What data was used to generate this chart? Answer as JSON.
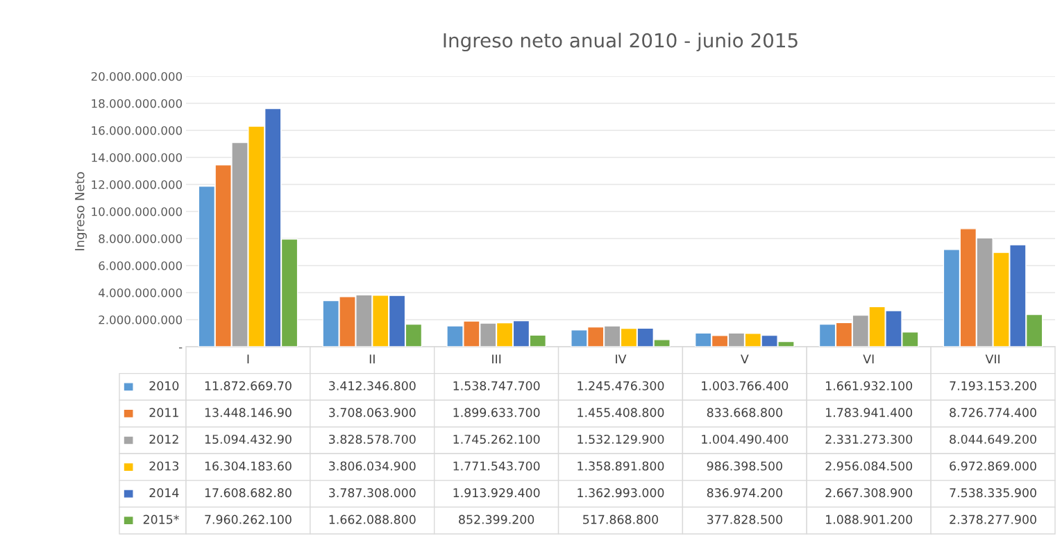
{
  "chart_data": {
    "type": "bar",
    "title": "Ingreso neto anual 2010 - junio 2015",
    "ylabel": "Ingreso Neto",
    "categories": [
      "I",
      "II",
      "III",
      "IV",
      "V",
      "VI",
      "VII"
    ],
    "series": [
      {
        "name": "2010",
        "color": "#5b9bd5",
        "values": [
          11872669700,
          3412346800,
          1538747700,
          1245476300,
          1003766400,
          1661932100,
          7193153200
        ],
        "value_labels": [
          "11.872.669.70",
          "3.412.346.800",
          "1.538.747.700",
          "1.245.476.300",
          "1.003.766.400",
          "1.661.932.100",
          "7.193.153.200"
        ]
      },
      {
        "name": "2011",
        "color": "#ed7d31",
        "values": [
          13448146900,
          3708063900,
          1899633700,
          1455408800,
          833668800,
          1783941400,
          8726774400
        ],
        "value_labels": [
          "13.448.146.90",
          "3.708.063.900",
          "1.899.633.700",
          "1.455.408.800",
          "833.668.800",
          "1.783.941.400",
          "8.726.774.400"
        ]
      },
      {
        "name": "2012",
        "color": "#a5a5a5",
        "values": [
          15094432900,
          3828578700,
          1745262100,
          1532129900,
          1004490400,
          2331273300,
          8044649200
        ],
        "value_labels": [
          "15.094.432.90",
          "3.828.578.700",
          "1.745.262.100",
          "1.532.129.900",
          "1.004.490.400",
          "2.331.273.300",
          "8.044.649.200"
        ]
      },
      {
        "name": "2013",
        "color": "#ffc000",
        "values": [
          16304183600,
          3806034900,
          1771543700,
          1358891800,
          986398500,
          2956084500,
          6972869000
        ],
        "value_labels": [
          "16.304.183.60",
          "3.806.034.900",
          "1.771.543.700",
          "1.358.891.800",
          "986.398.500",
          "2.956.084.500",
          "6.972.869.000"
        ]
      },
      {
        "name": "2014",
        "color": "#4472c4",
        "values": [
          17608682800,
          3787308000,
          1913929400,
          1362993000,
          836974200,
          2667308900,
          7538335900
        ],
        "value_labels": [
          "17.608.682.80",
          "3.787.308.000",
          "1.913.929.400",
          "1.362.993.000",
          "836.974.200",
          "2.667.308.900",
          "7.538.335.900"
        ]
      },
      {
        "name": "2015*",
        "color": "#70ad47",
        "values": [
          7960262100,
          1662088800,
          852399200,
          517868800,
          377828500,
          1088901200,
          2378277900
        ],
        "value_labels": [
          "7.960.262.100",
          "1.662.088.800",
          "852.399.200",
          "517.868.800",
          "377.828.500",
          "1.088.901.200",
          "2.378.277.900"
        ]
      }
    ],
    "ylim": [
      0,
      20000000000
    ],
    "yticks": [
      {
        "value": 0,
        "label": "-"
      },
      {
        "value": 2000000000,
        "label": "2.000.000.000"
      },
      {
        "value": 4000000000,
        "label": "4.000.000.000"
      },
      {
        "value": 6000000000,
        "label": "6.000.000.000"
      },
      {
        "value": 8000000000,
        "label": "8.000.000.000"
      },
      {
        "value": 10000000000,
        "label": "10.000.000.000"
      },
      {
        "value": 12000000000,
        "label": "12.000.000.000"
      },
      {
        "value": 14000000000,
        "label": "14.000.000.000"
      },
      {
        "value": 16000000000,
        "label": "16.000.000.000"
      },
      {
        "value": 18000000000,
        "label": "18.000.000.000"
      },
      {
        "value": 20000000000,
        "label": "20.000.000.000"
      }
    ],
    "grid": "y",
    "legend": "bottom left"
  }
}
